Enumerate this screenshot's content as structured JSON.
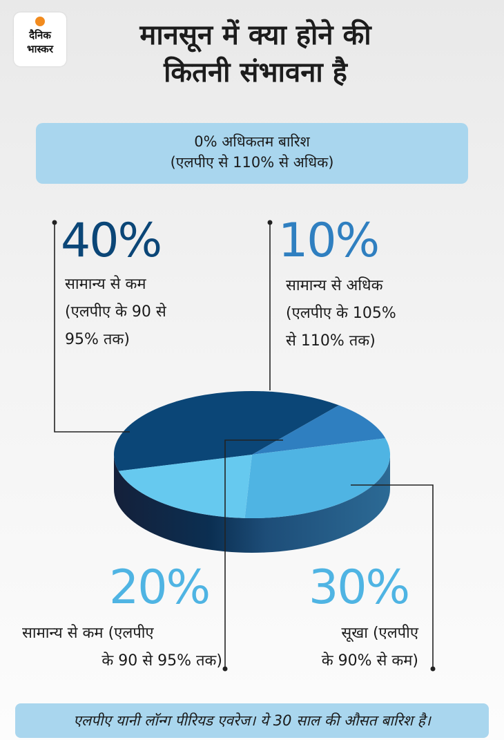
{
  "logo": {
    "line1": "दैनिक",
    "line2": "भास्कर"
  },
  "title": {
    "line1": "मानसून में क्या होने की",
    "line2": "कितनी संभावना है"
  },
  "banner": {
    "line1": "0% अधिकतम बारिश",
    "line2": "(एलपीए से 110% से अधिक)"
  },
  "labels": {
    "a": {
      "pct": "40%",
      "l1": "सामान्य से कम",
      "l2": "(एलपीए के 90 से",
      "l3": "95% तक)"
    },
    "b": {
      "pct": "10%",
      "l1": "सामान्य से अधिक",
      "l2": "(एलपीए के 105%",
      "l3": "से 110% तक)"
    },
    "c": {
      "pct": "20%",
      "l1": "सामान्य से कम (एलपीए",
      "l2": "के 90 से 95% तक)"
    },
    "d": {
      "pct": "30%",
      "l1": "सूखा (एलपीए",
      "l2": "के 90% से कम)"
    }
  },
  "footer": "एलपीए यानी लॉन्ग पीरियड एवरेज। ये 30 साल की औसत बारिश है।",
  "colors": {
    "dark": "#0b4677",
    "mid": "#2f7fc0",
    "light": "#4fb4e3",
    "pale": "#66c9ef",
    "pct_dark": "#0b4677",
    "pct_mid": "#2f7fc0",
    "pct_light": "#4fb4e3"
  },
  "chart_data": {
    "type": "pie",
    "categories": [
      "40%",
      "10%",
      "30%",
      "20%"
    ],
    "values": [
      40,
      10,
      30,
      20
    ]
  }
}
